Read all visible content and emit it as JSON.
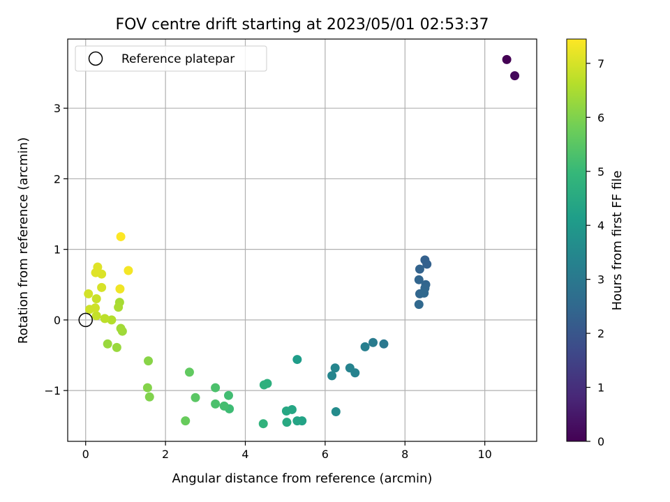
{
  "chart_data": {
    "type": "scatter",
    "title": "FOV centre drift starting at 2023/05/01 02:53:37",
    "xlabel": "Angular distance from reference (arcmin)",
    "ylabel": "Rotation from reference (arcmin)",
    "xlim": [
      -0.45,
      11.3
    ],
    "ylim": [
      -1.72,
      3.98
    ],
    "xticks": [
      0,
      2,
      4,
      6,
      8,
      10
    ],
    "xtick_labels": [
      "0",
      "2",
      "4",
      "6",
      "8",
      "10"
    ],
    "yticks": [
      -1,
      0,
      1,
      2,
      3
    ],
    "ytick_labels": [
      "−1",
      "0",
      "1",
      "2",
      "3"
    ],
    "grid": true,
    "legend": {
      "placement": "top-left",
      "entries": [
        "Reference platepar"
      ]
    },
    "reference_point": {
      "x": 0,
      "y": 0
    },
    "colorbar": {
      "label": "Hours from first FF file",
      "range": [
        0,
        7.45
      ],
      "ticks": [
        0,
        1,
        2,
        3,
        4,
        5,
        6,
        7
      ],
      "tick_labels": [
        "0",
        "1",
        "2",
        "3",
        "4",
        "5",
        "6",
        "7"
      ],
      "colormap": [
        "#440154",
        "#482878",
        "#3e4989",
        "#31688e",
        "#26828e",
        "#1f9e89",
        "#35b779",
        "#6ece58",
        "#b5de2b",
        "#fde725"
      ]
    },
    "points": [
      {
        "x": 10.55,
        "y": 3.69,
        "t": 0.0
      },
      {
        "x": 10.75,
        "y": 3.46,
        "t": 0.15
      },
      {
        "x": 8.5,
        "y": 0.85,
        "t": 2.3
      },
      {
        "x": 8.55,
        "y": 0.79,
        "t": 2.3
      },
      {
        "x": 8.37,
        "y": 0.72,
        "t": 2.35
      },
      {
        "x": 8.35,
        "y": 0.57,
        "t": 2.4
      },
      {
        "x": 8.52,
        "y": 0.5,
        "t": 2.4
      },
      {
        "x": 8.5,
        "y": 0.45,
        "t": 2.45
      },
      {
        "x": 8.37,
        "y": 0.37,
        "t": 2.45
      },
      {
        "x": 8.48,
        "y": 0.38,
        "t": 2.5
      },
      {
        "x": 8.35,
        "y": 0.22,
        "t": 2.5
      },
      {
        "x": 7.47,
        "y": -0.34,
        "t": 3.0
      },
      {
        "x": 7.2,
        "y": -0.32,
        "t": 3.1
      },
      {
        "x": 7.0,
        "y": -0.38,
        "t": 3.2
      },
      {
        "x": 6.75,
        "y": -0.75,
        "t": 3.3
      },
      {
        "x": 6.62,
        "y": -0.68,
        "t": 3.35
      },
      {
        "x": 6.25,
        "y": -0.68,
        "t": 3.4
      },
      {
        "x": 6.17,
        "y": -0.79,
        "t": 3.4
      },
      {
        "x": 6.27,
        "y": -1.3,
        "t": 3.6
      },
      {
        "x": 5.3,
        "y": -0.56,
        "t": 4.1
      },
      {
        "x": 5.42,
        "y": -1.43,
        "t": 4.3
      },
      {
        "x": 5.3,
        "y": -1.43,
        "t": 4.35
      },
      {
        "x": 5.17,
        "y": -1.27,
        "t": 4.4
      },
      {
        "x": 5.03,
        "y": -1.29,
        "t": 4.45
      },
      {
        "x": 5.04,
        "y": -1.45,
        "t": 4.5
      },
      {
        "x": 4.55,
        "y": -0.9,
        "t": 4.7
      },
      {
        "x": 4.47,
        "y": -0.92,
        "t": 4.75
      },
      {
        "x": 4.45,
        "y": -1.47,
        "t": 4.8
      },
      {
        "x": 3.6,
        "y": -1.26,
        "t": 5.1
      },
      {
        "x": 3.58,
        "y": -1.07,
        "t": 5.15
      },
      {
        "x": 3.47,
        "y": -1.22,
        "t": 5.2
      },
      {
        "x": 3.25,
        "y": -0.96,
        "t": 5.3
      },
      {
        "x": 3.25,
        "y": -1.19,
        "t": 5.3
      },
      {
        "x": 2.75,
        "y": -1.1,
        "t": 5.5
      },
      {
        "x": 2.6,
        "y": -0.74,
        "t": 5.6
      },
      {
        "x": 2.5,
        "y": -1.43,
        "t": 5.7
      },
      {
        "x": 1.6,
        "y": -1.09,
        "t": 6.0
      },
      {
        "x": 1.55,
        "y": -0.96,
        "t": 6.05
      },
      {
        "x": 1.57,
        "y": -0.58,
        "t": 6.1
      },
      {
        "x": 0.55,
        "y": -0.34,
        "t": 6.3
      },
      {
        "x": 0.78,
        "y": -0.39,
        "t": 6.3
      },
      {
        "x": 0.92,
        "y": -0.16,
        "t": 6.35
      },
      {
        "x": 0.88,
        "y": -0.12,
        "t": 6.4
      },
      {
        "x": 0.85,
        "y": 0.25,
        "t": 6.45
      },
      {
        "x": 0.82,
        "y": 0.18,
        "t": 6.5
      },
      {
        "x": 0.65,
        "y": 0.0,
        "t": 6.6
      },
      {
        "x": 0.48,
        "y": 0.02,
        "t": 6.7
      },
      {
        "x": 0.27,
        "y": 0.06,
        "t": 6.8
      },
      {
        "x": 0.27,
        "y": 0.3,
        "t": 6.85
      },
      {
        "x": 0.1,
        "y": 0.15,
        "t": 6.9
      },
      {
        "x": 0.24,
        "y": 0.17,
        "t": 6.9
      },
      {
        "x": 0.07,
        "y": 0.37,
        "t": 6.95
      },
      {
        "x": 0.4,
        "y": 0.46,
        "t": 7.0
      },
      {
        "x": 0.4,
        "y": 0.65,
        "t": 7.05
      },
      {
        "x": 0.3,
        "y": 0.75,
        "t": 7.1
      },
      {
        "x": 0.25,
        "y": 0.67,
        "t": 7.1
      },
      {
        "x": 0.86,
        "y": 0.44,
        "t": 7.3
      },
      {
        "x": 1.07,
        "y": 0.7,
        "t": 7.35
      },
      {
        "x": 0.88,
        "y": 1.18,
        "t": 7.45
      }
    ]
  }
}
